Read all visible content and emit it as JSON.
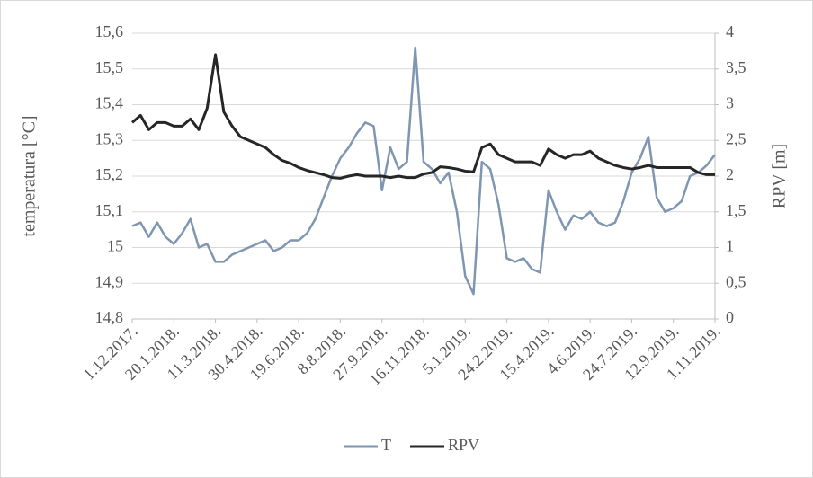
{
  "chart_data": {
    "type": "line",
    "y_label": "temperatura [°C]",
    "y2_label": "RPV [m]",
    "x": [
      "2017-12-01",
      "2017-12-11",
      "2017-12-21",
      "2017-12-31",
      "2018-01-10",
      "2018-01-20",
      "2018-01-30",
      "2018-02-09",
      "2018-02-19",
      "2018-03-01",
      "2018-03-11",
      "2018-03-21",
      "2018-03-31",
      "2018-04-10",
      "2018-04-20",
      "2018-04-30",
      "2018-05-10",
      "2018-05-20",
      "2018-05-30",
      "2018-06-09",
      "2018-06-19",
      "2018-06-29",
      "2018-07-09",
      "2018-07-19",
      "2018-07-29",
      "2018-08-08",
      "2018-08-18",
      "2018-08-28",
      "2018-09-07",
      "2018-09-17",
      "2018-09-27",
      "2018-10-07",
      "2018-10-17",
      "2018-10-27",
      "2018-11-06",
      "2018-11-16",
      "2018-11-26",
      "2018-12-06",
      "2018-12-16",
      "2018-12-26",
      "2019-01-05",
      "2019-01-15",
      "2019-01-25",
      "2019-02-04",
      "2019-02-14",
      "2019-02-24",
      "2019-03-06",
      "2019-03-16",
      "2019-03-26",
      "2019-04-05",
      "2019-04-15",
      "2019-04-25",
      "2019-05-05",
      "2019-05-15",
      "2019-05-25",
      "2019-06-04",
      "2019-06-14",
      "2019-06-24",
      "2019-07-04",
      "2019-07-14",
      "2019-07-24",
      "2019-08-03",
      "2019-08-13",
      "2019-08-23",
      "2019-09-02",
      "2019-09-12",
      "2019-09-22",
      "2019-10-02",
      "2019-10-12",
      "2019-10-22",
      "2019-11-01"
    ],
    "series": [
      {
        "name": "T",
        "color": "#7f96b2",
        "axis": "y",
        "values": [
          15.06,
          15.07,
          15.03,
          15.07,
          15.03,
          15.01,
          15.04,
          15.08,
          15.0,
          15.01,
          14.96,
          14.96,
          14.98,
          14.99,
          15.0,
          15.01,
          15.02,
          14.99,
          15.0,
          15.02,
          15.02,
          15.04,
          15.08,
          15.14,
          15.2,
          15.25,
          15.28,
          15.32,
          15.35,
          15.34,
          15.16,
          15.28,
          15.22,
          15.24,
          15.56,
          15.24,
          15.22,
          15.18,
          15.21,
          15.1,
          14.92,
          14.87,
          15.24,
          15.22,
          15.12,
          14.97,
          14.96,
          14.97,
          14.94,
          14.93,
          15.16,
          15.1,
          15.05,
          15.09,
          15.08,
          15.1,
          15.07,
          15.06,
          15.07,
          15.13,
          15.21,
          15.25,
          15.31,
          15.14,
          15.1,
          15.11,
          15.13,
          15.2,
          15.21,
          15.23,
          15.26
        ]
      },
      {
        "name": "RPV",
        "color": "#262626",
        "axis": "y2",
        "values": [
          2.75,
          2.85,
          2.65,
          2.75,
          2.75,
          2.7,
          2.7,
          2.8,
          2.65,
          2.95,
          3.7,
          2.9,
          2.7,
          2.55,
          2.5,
          2.45,
          2.4,
          2.3,
          2.22,
          2.18,
          2.12,
          2.08,
          2.05,
          2.02,
          1.98,
          1.97,
          2.0,
          2.02,
          2.0,
          2.0,
          2.0,
          1.98,
          2.0,
          1.98,
          1.98,
          2.03,
          2.05,
          2.13,
          2.12,
          2.1,
          2.07,
          2.06,
          2.4,
          2.45,
          2.3,
          2.25,
          2.2,
          2.2,
          2.2,
          2.15,
          2.38,
          2.3,
          2.25,
          2.3,
          2.3,
          2.35,
          2.25,
          2.2,
          2.15,
          2.12,
          2.1,
          2.12,
          2.15,
          2.12,
          2.12,
          2.12,
          2.12,
          2.12,
          2.05,
          2.02,
          2.02
        ]
      }
    ],
    "xlim": [
      "2017-12-01",
      "2019-11-01"
    ],
    "xticks": [
      {
        "value": "2017-12-01",
        "label": "1.12.2017."
      },
      {
        "value": "2018-01-20",
        "label": "20.1.2018."
      },
      {
        "value": "2018-03-11",
        "label": "11.3.2018."
      },
      {
        "value": "2018-04-30",
        "label": "30.4.2018."
      },
      {
        "value": "2018-06-19",
        "label": "19.6.2018."
      },
      {
        "value": "2018-08-08",
        "label": "8.8.2018."
      },
      {
        "value": "2018-09-27",
        "label": "27.9.2018."
      },
      {
        "value": "2018-11-16",
        "label": "16.11.2018."
      },
      {
        "value": "2019-01-05",
        "label": "5.1.2019."
      },
      {
        "value": "2019-02-24",
        "label": "24.2.2019."
      },
      {
        "value": "2019-04-15",
        "label": "15.4.2019."
      },
      {
        "value": "2019-06-04",
        "label": "4.6.2019."
      },
      {
        "value": "2019-07-24",
        "label": "24.7.2019."
      },
      {
        "value": "2019-09-12",
        "label": "12.9.2019."
      },
      {
        "value": "2019-11-01",
        "label": "1.11.2019."
      }
    ],
    "ylim": [
      14.8,
      15.6
    ],
    "yticks": [
      {
        "value": 14.8,
        "label": "14,8"
      },
      {
        "value": 14.9,
        "label": "14,9"
      },
      15,
      {
        "value": 15.1,
        "label": "15,1"
      },
      {
        "value": 15.2,
        "label": "15,2"
      },
      {
        "value": 15.3,
        "label": "15,3"
      },
      {
        "value": 15.4,
        "label": "15,4"
      },
      {
        "value": 15.5,
        "label": "15,5"
      },
      {
        "value": 15.6,
        "label": "15,6"
      }
    ],
    "y2lim": [
      0,
      4
    ],
    "y2ticks": [
      0,
      {
        "value": 0.5,
        "label": "0,5"
      },
      1,
      {
        "value": 1.5,
        "label": "1,5"
      },
      2,
      {
        "value": 2.5,
        "label": "2,5"
      },
      3,
      {
        "value": 3.5,
        "label": "3,5"
      },
      4
    ],
    "grid": true,
    "legend": "bottom"
  }
}
